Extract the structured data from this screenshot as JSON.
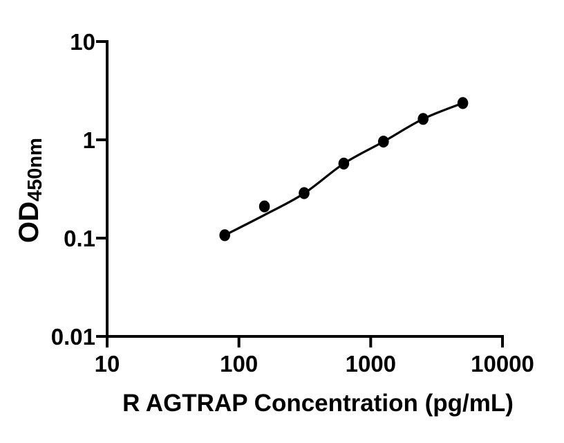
{
  "figure": {
    "background_color": "#ffffff",
    "ink_color": "#000000"
  },
  "chart_data": {
    "type": "scatter",
    "title": "",
    "xlabel": "R AGTRAP Concentration (pg/mL)",
    "ylabel_main": "OD",
    "ylabel_sub": "450nm",
    "x_scale": "log10",
    "y_scale": "log10",
    "xlim": [
      10,
      10000
    ],
    "ylim": [
      0.01,
      10
    ],
    "grid": false,
    "legend": false,
    "x_ticks": [
      {
        "value": 10,
        "label": "10"
      },
      {
        "value": 100,
        "label": "100"
      },
      {
        "value": 1000,
        "label": "1000"
      },
      {
        "value": 10000,
        "label": "10000"
      }
    ],
    "y_ticks": [
      {
        "value": 10,
        "label": "10"
      },
      {
        "value": 1,
        "label": "1"
      },
      {
        "value": 0.1,
        "label": "0.1"
      },
      {
        "value": 0.01,
        "label": "0.01"
      }
    ],
    "points": [
      {
        "x": 78.125,
        "od": 0.107
      },
      {
        "x": 156.25,
        "od": 0.21
      },
      {
        "x": 312.5,
        "od": 0.287
      },
      {
        "x": 625,
        "od": 0.573
      },
      {
        "x": 1250,
        "od": 0.958
      },
      {
        "x": 2500,
        "od": 1.632
      },
      {
        "x": 5000,
        "od": 2.365
      }
    ],
    "fit_curve_points": [
      {
        "x": 78.125,
        "od": 0.107
      },
      {
        "x": 156.25,
        "od": 0.172
      },
      {
        "x": 312.5,
        "od": 0.285
      },
      {
        "x": 625,
        "od": 0.573
      },
      {
        "x": 1250,
        "od": 0.958
      },
      {
        "x": 2500,
        "od": 1.632
      },
      {
        "x": 5000,
        "od": 2.365
      }
    ],
    "marker_color": "#000000",
    "line_color": "#000000",
    "axis_color": "#000000"
  }
}
